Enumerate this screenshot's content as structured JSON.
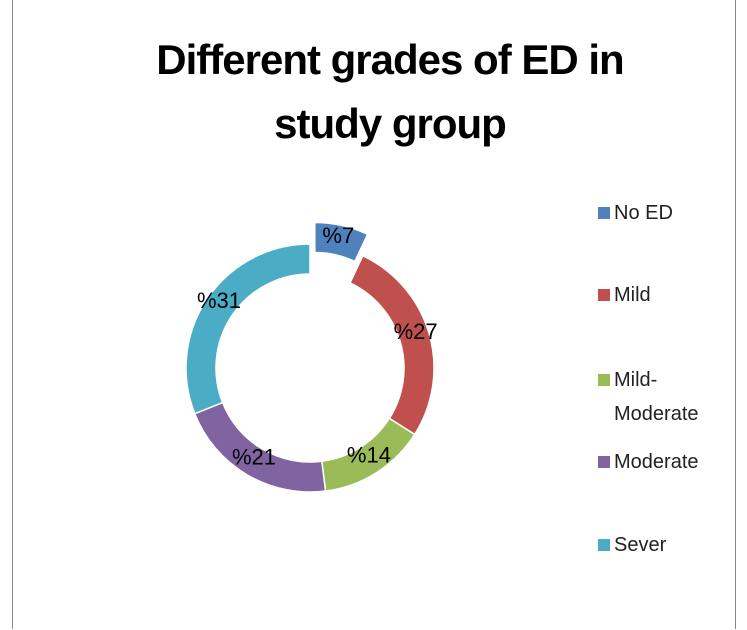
{
  "chart_data": {
    "type": "donut",
    "title": "Different grades of ED in study group",
    "categories": [
      "No ED",
      "Mild",
      "Mild-Moderate",
      "Moderate",
      "Sever"
    ],
    "values": [
      7,
      27,
      14,
      21,
      31
    ],
    "value_labels": [
      "%7",
      "%27",
      "%14",
      "%21",
      "%31"
    ],
    "colors": [
      "#4f81bd",
      "#c0504d",
      "#9bbb59",
      "#8064a2",
      "#4bacc6"
    ],
    "exploded": [
      0
    ],
    "legend": "right"
  }
}
